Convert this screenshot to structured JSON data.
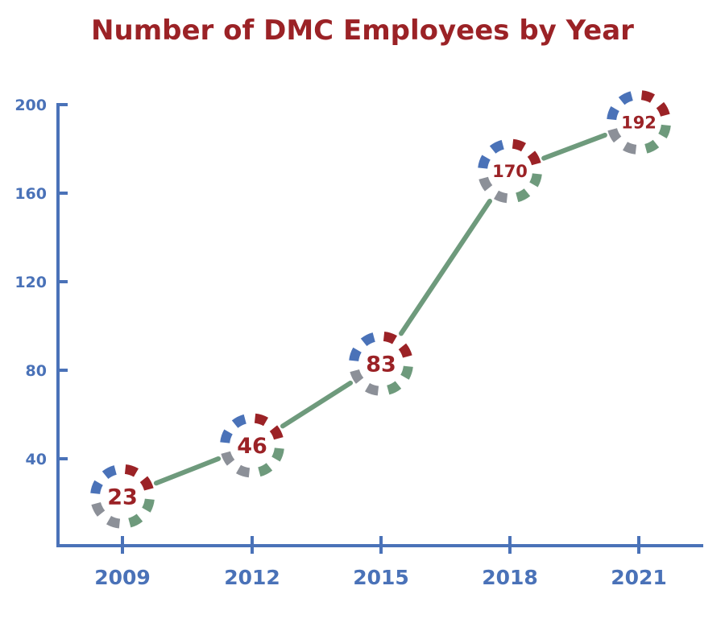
{
  "chart_data": {
    "type": "line",
    "title": "Number of DMC Employees by Year",
    "xlabel": "",
    "ylabel": "",
    "categories": [
      "2009",
      "2012",
      "2015",
      "2018",
      "2021"
    ],
    "series": [
      {
        "values": [
          23,
          46,
          83,
          170,
          192
        ],
        "data_labels": [
          "23",
          "46",
          "83",
          "170",
          "192"
        ]
      }
    ],
    "yticks": [
      40,
      80,
      120,
      160,
      200
    ],
    "ytick_labels": [
      "40",
      "80",
      "120",
      "160",
      "200"
    ],
    "ylim": [
      0,
      200
    ],
    "grid": false,
    "legend": "none"
  },
  "colors": {
    "title": "#9b2226",
    "axis": "#4a72b8",
    "line": "#6e9a7c",
    "label": "#9b2226",
    "marker_blue": "#4a72b8",
    "marker_red": "#9b2226",
    "marker_gray": "#8c9098",
    "marker_green": "#6e9a7c"
  }
}
